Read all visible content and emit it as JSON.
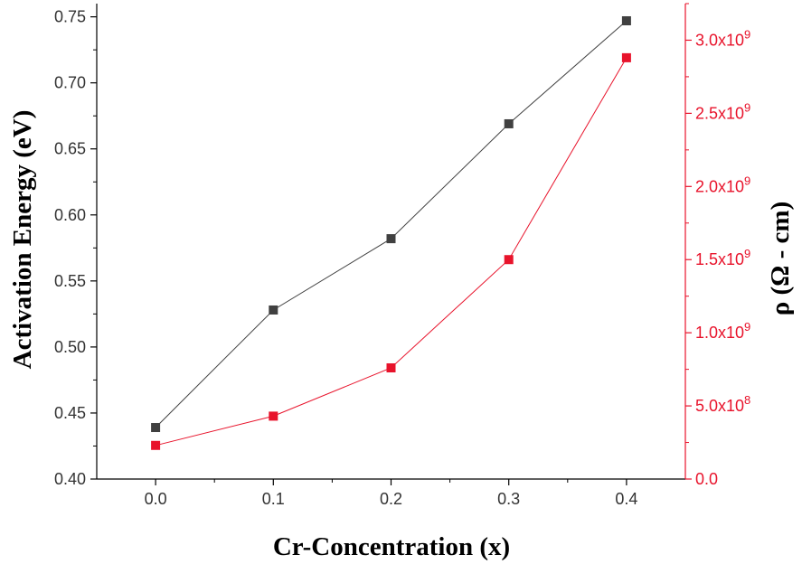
{
  "chart_data": {
    "type": "line",
    "title": "",
    "xlabel": "Cr-Concentration (x)",
    "ylabel_left": "Activation Energy (eV)",
    "ylabel_right": "ρ (Ω - cm)",
    "x": [
      0.0,
      0.1,
      0.2,
      0.3,
      0.4
    ],
    "xlim": [
      -0.05,
      0.45
    ],
    "x_ticks": [
      0.0,
      0.1,
      0.2,
      0.3,
      0.4
    ],
    "x_tick_labels": [
      "0.0",
      "0.1",
      "0.2",
      "0.3",
      "0.4"
    ],
    "ylim_left": [
      0.4,
      0.76
    ],
    "y_ticks_left": [
      0.4,
      0.45,
      0.5,
      0.55,
      0.6,
      0.65,
      0.7,
      0.75
    ],
    "y_tick_labels_left": [
      "0.40",
      "0.45",
      "0.50",
      "0.55",
      "0.60",
      "0.65",
      "0.70",
      "0.75"
    ],
    "ylim_right": [
      0,
      3250000000
    ],
    "y_ticks_right": [
      0,
      500000000,
      1000000000,
      1500000000,
      2000000000,
      2500000000,
      3000000000
    ],
    "y_tick_labels_right": [
      {
        "mantissa": "0.0",
        "exp": ""
      },
      {
        "mantissa": "5.0x10",
        "exp": "8"
      },
      {
        "mantissa": "1.0x10",
        "exp": "9"
      },
      {
        "mantissa": "1.5x10",
        "exp": "9"
      },
      {
        "mantissa": "2.0x10",
        "exp": "9"
      },
      {
        "mantissa": "2.5x10",
        "exp": "9"
      },
      {
        "mantissa": "3.0x10",
        "exp": "9"
      }
    ],
    "grid": false,
    "series": [
      {
        "name": "Activation Energy",
        "axis": "left",
        "color": "#404040",
        "marker": "square",
        "values": [
          0.439,
          0.528,
          0.582,
          0.669,
          0.747
        ]
      },
      {
        "name": "ρ",
        "axis": "right",
        "color": "#e8132b",
        "marker": "square",
        "values": [
          230000000,
          430000000,
          760000000,
          1500000000,
          2880000000
        ]
      }
    ]
  }
}
